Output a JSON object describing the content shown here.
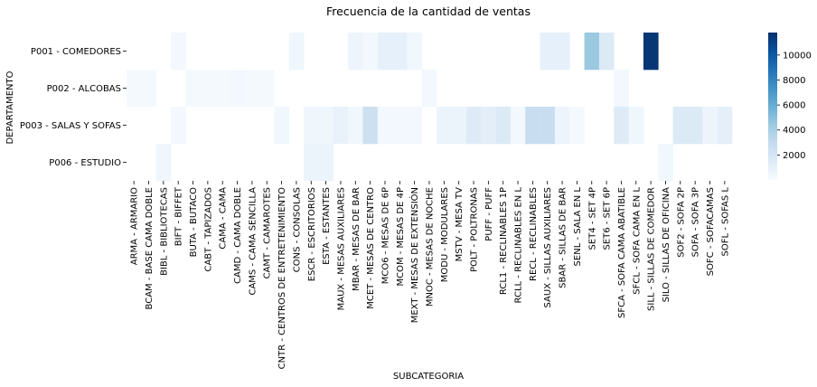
{
  "chart_data": {
    "type": "heatmap",
    "title": "Frecuencia de la cantidad de ventas",
    "xlabel": "SUBCATEGORIA",
    "ylabel": "DEPARTAMENTO",
    "rows": [
      "P001 - COMEDORES",
      "P002 - ALCOBAS",
      "P003 - SALAS Y SOFAS",
      "P006 - ESTUDIO"
    ],
    "columns": [
      "ARMA - ARMARIO",
      "BCAM - BASE CAMA DOBLE",
      "BIBL - BIBLIOTECAS",
      "BIFT - BIFFET",
      "BUTA - BUTACO",
      "CABT - TAPIZADOS",
      "CAMA - CAMA",
      "CAMD - CAMA DOBLE",
      "CAMS - CAMA SENCILLA",
      "CAMT - CAMAROTES",
      "CNTR - CENTROS DE ENTRETENIMIENTO",
      "CONS - CONSOLAS",
      "ESCR - ESCRITORIOS",
      "ESTA - ESTANTES",
      "MAUX - MESAS AUXILIARES",
      "MBAR - MESAS DE BAR",
      "MCET - MESAS DE CENTRO",
      "MCO6 - MESAS DE 6P",
      "MCOM - MESAS DE 4P",
      "MEXT - MESAS DE EXTENSIÓN",
      "MNOC - MESAS DE NOCHE",
      "MODU - MODULARES",
      "MSTV - MESA TV",
      "POLT - POLTRONAS",
      "PUFF - PUFF",
      "RCL1 - RECLINABLES 1P",
      "RCLL - RECLINABLES EN L",
      "RECL - RECLINABLES",
      "SAUX - SILLAS AUXILIARES",
      "SBAR - SILLAS DE BAR",
      "SENL - SALA EN L",
      "SET4 - SET 4P",
      "SET6 - SET 6P",
      "SFCA - SOFA CAMA ABATIBLE",
      "SFCL - SOFA CAMA EN L",
      "SILL - SILLAS DE COMEDOR",
      "SILO - SILLAS DE OFICINA",
      "SOF2 - SOFA 2P",
      "SOFA - SOFA 3P",
      "SOFC - SOFACAMAS",
      "SOFL - SOFAS L"
    ],
    "values": [
      [
        null,
        null,
        null,
        300,
        null,
        null,
        null,
        null,
        null,
        null,
        null,
        500,
        null,
        null,
        null,
        600,
        300,
        1000,
        1000,
        400,
        null,
        null,
        null,
        null,
        null,
        null,
        null,
        null,
        1000,
        1000,
        null,
        4500,
        1600,
        null,
        null,
        11500,
        null,
        null,
        null,
        null,
        null
      ],
      [
        200,
        200,
        null,
        null,
        150,
        150,
        150,
        250,
        200,
        200,
        null,
        null,
        null,
        null,
        null,
        null,
        null,
        null,
        null,
        null,
        300,
        null,
        null,
        null,
        null,
        null,
        null,
        null,
        null,
        null,
        null,
        null,
        null,
        300,
        null,
        null,
        null,
        null,
        null,
        null,
        null
      ],
      [
        null,
        null,
        null,
        300,
        null,
        null,
        null,
        null,
        null,
        null,
        400,
        null,
        500,
        500,
        800,
        400,
        2500,
        300,
        300,
        300,
        null,
        700,
        700,
        1500,
        1200,
        1600,
        300,
        2800,
        2800,
        600,
        200,
        null,
        null,
        1500,
        500,
        null,
        null,
        1600,
        1600,
        600,
        1100
      ],
      [
        null,
        null,
        500,
        null,
        null,
        null,
        null,
        null,
        null,
        null,
        null,
        null,
        700,
        700,
        null,
        null,
        null,
        null,
        null,
        null,
        null,
        null,
        null,
        null,
        null,
        null,
        null,
        null,
        null,
        null,
        null,
        null,
        null,
        null,
        null,
        null,
        400,
        null,
        null,
        null,
        null
      ]
    ],
    "colorbar": {
      "ticks": [
        2000,
        4000,
        6000,
        8000,
        10000
      ],
      "min": 0,
      "max": 11800,
      "colormap": "Blues"
    },
    "grid": false,
    "legend": "colorbar-right"
  }
}
